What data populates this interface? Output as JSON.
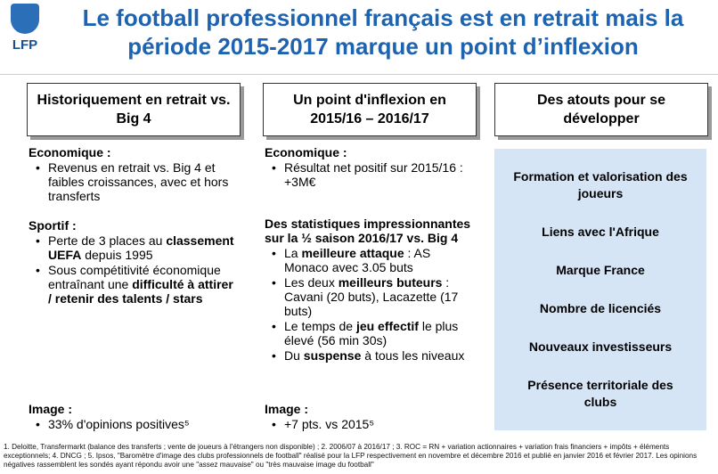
{
  "logo": "LFP",
  "title": [
    "Le football professionnel français est en retrait mais la",
    "période 2015-2017 marque un point d’inflexion"
  ],
  "columns": [
    {
      "header": "Historiquement en retrait vs. Big 4",
      "sections": [
        {
          "heading": "Economique :",
          "bullets": [
            [
              "Revenus en retrait vs. Big 4 et faibles croissances, avec et hors transferts"
            ]
          ]
        },
        {
          "heading": "Sportif :",
          "bullets": [
            [
              "Perte de 3 places au ",
              {
                "text": "classement UEFA",
                "bold": true
              },
              " depuis 1995"
            ],
            [
              "Sous compétitivité économique entraînant une ",
              {
                "text": "difficulté à attirer / retenir des talents / stars",
                "bold": true
              }
            ]
          ]
        },
        {
          "heading": "Image :",
          "bullets": [
            [
              "33% d'opinions positives⁵"
            ]
          ]
        }
      ]
    },
    {
      "header": "Un point d'inflexion en 2015/16 – 2016/17",
      "sections": [
        {
          "heading": "Economique :",
          "bullets": [
            [
              "Résultat net positif sur 2015/16 : +3M€"
            ]
          ]
        },
        {
          "heading": "Des statistiques impressionnantes sur la ½ saison 2016/17 vs. Big 4",
          "bullets": [
            [
              "La ",
              {
                "text": "meilleure attaque",
                "bold": true
              },
              " : AS Monaco avec 3.05 buts"
            ],
            [
              "Les deux ",
              {
                "text": "meilleurs buteurs",
                "bold": true
              },
              " : Cavani (20 buts), Lacazette (17 buts)"
            ],
            [
              "Le temps de ",
              {
                "text": "jeu effectif",
                "bold": true
              },
              " le plus élevé (56 min 30s)"
            ],
            [
              "Du ",
              {
                "text": "suspense",
                "bold": true
              },
              " à tous les niveaux"
            ]
          ]
        },
        {
          "heading": "Image :",
          "bullets": [
            [
              "+7 pts. vs 2015⁵"
            ]
          ]
        }
      ]
    },
    {
      "header": "Des atouts pour se développer",
      "items": [
        "Formation et valorisation des joueurs",
        "Liens avec l'Afrique",
        "Marque France",
        "Nombre de licenciés",
        "Nouveaux investisseurs",
        "Présence territoriale des clubs"
      ]
    }
  ],
  "footnote": "1. Deloitte, Transfermarkt (balance des transferts ; vente de joueurs à l'étrangers non disponible) ; 2. 2006/07 à 2016/17 ; 3. ROC = RN + variation actionnaires + variation frais financiers + impôts + éléments exceptionnels; 4. DNCG ; 5. Ipsos, \"Baromètre d'image des clubs professionnels de football\" réalisé pour la LFP respectivement en novembre et décembre 2016 et publié en janvier 2016 et février 2017. Les opinions négatives rassemblent les sondés ayant répondu avoir une \"assez mauvaise\" ou \"très mauvaise image du football\""
}
